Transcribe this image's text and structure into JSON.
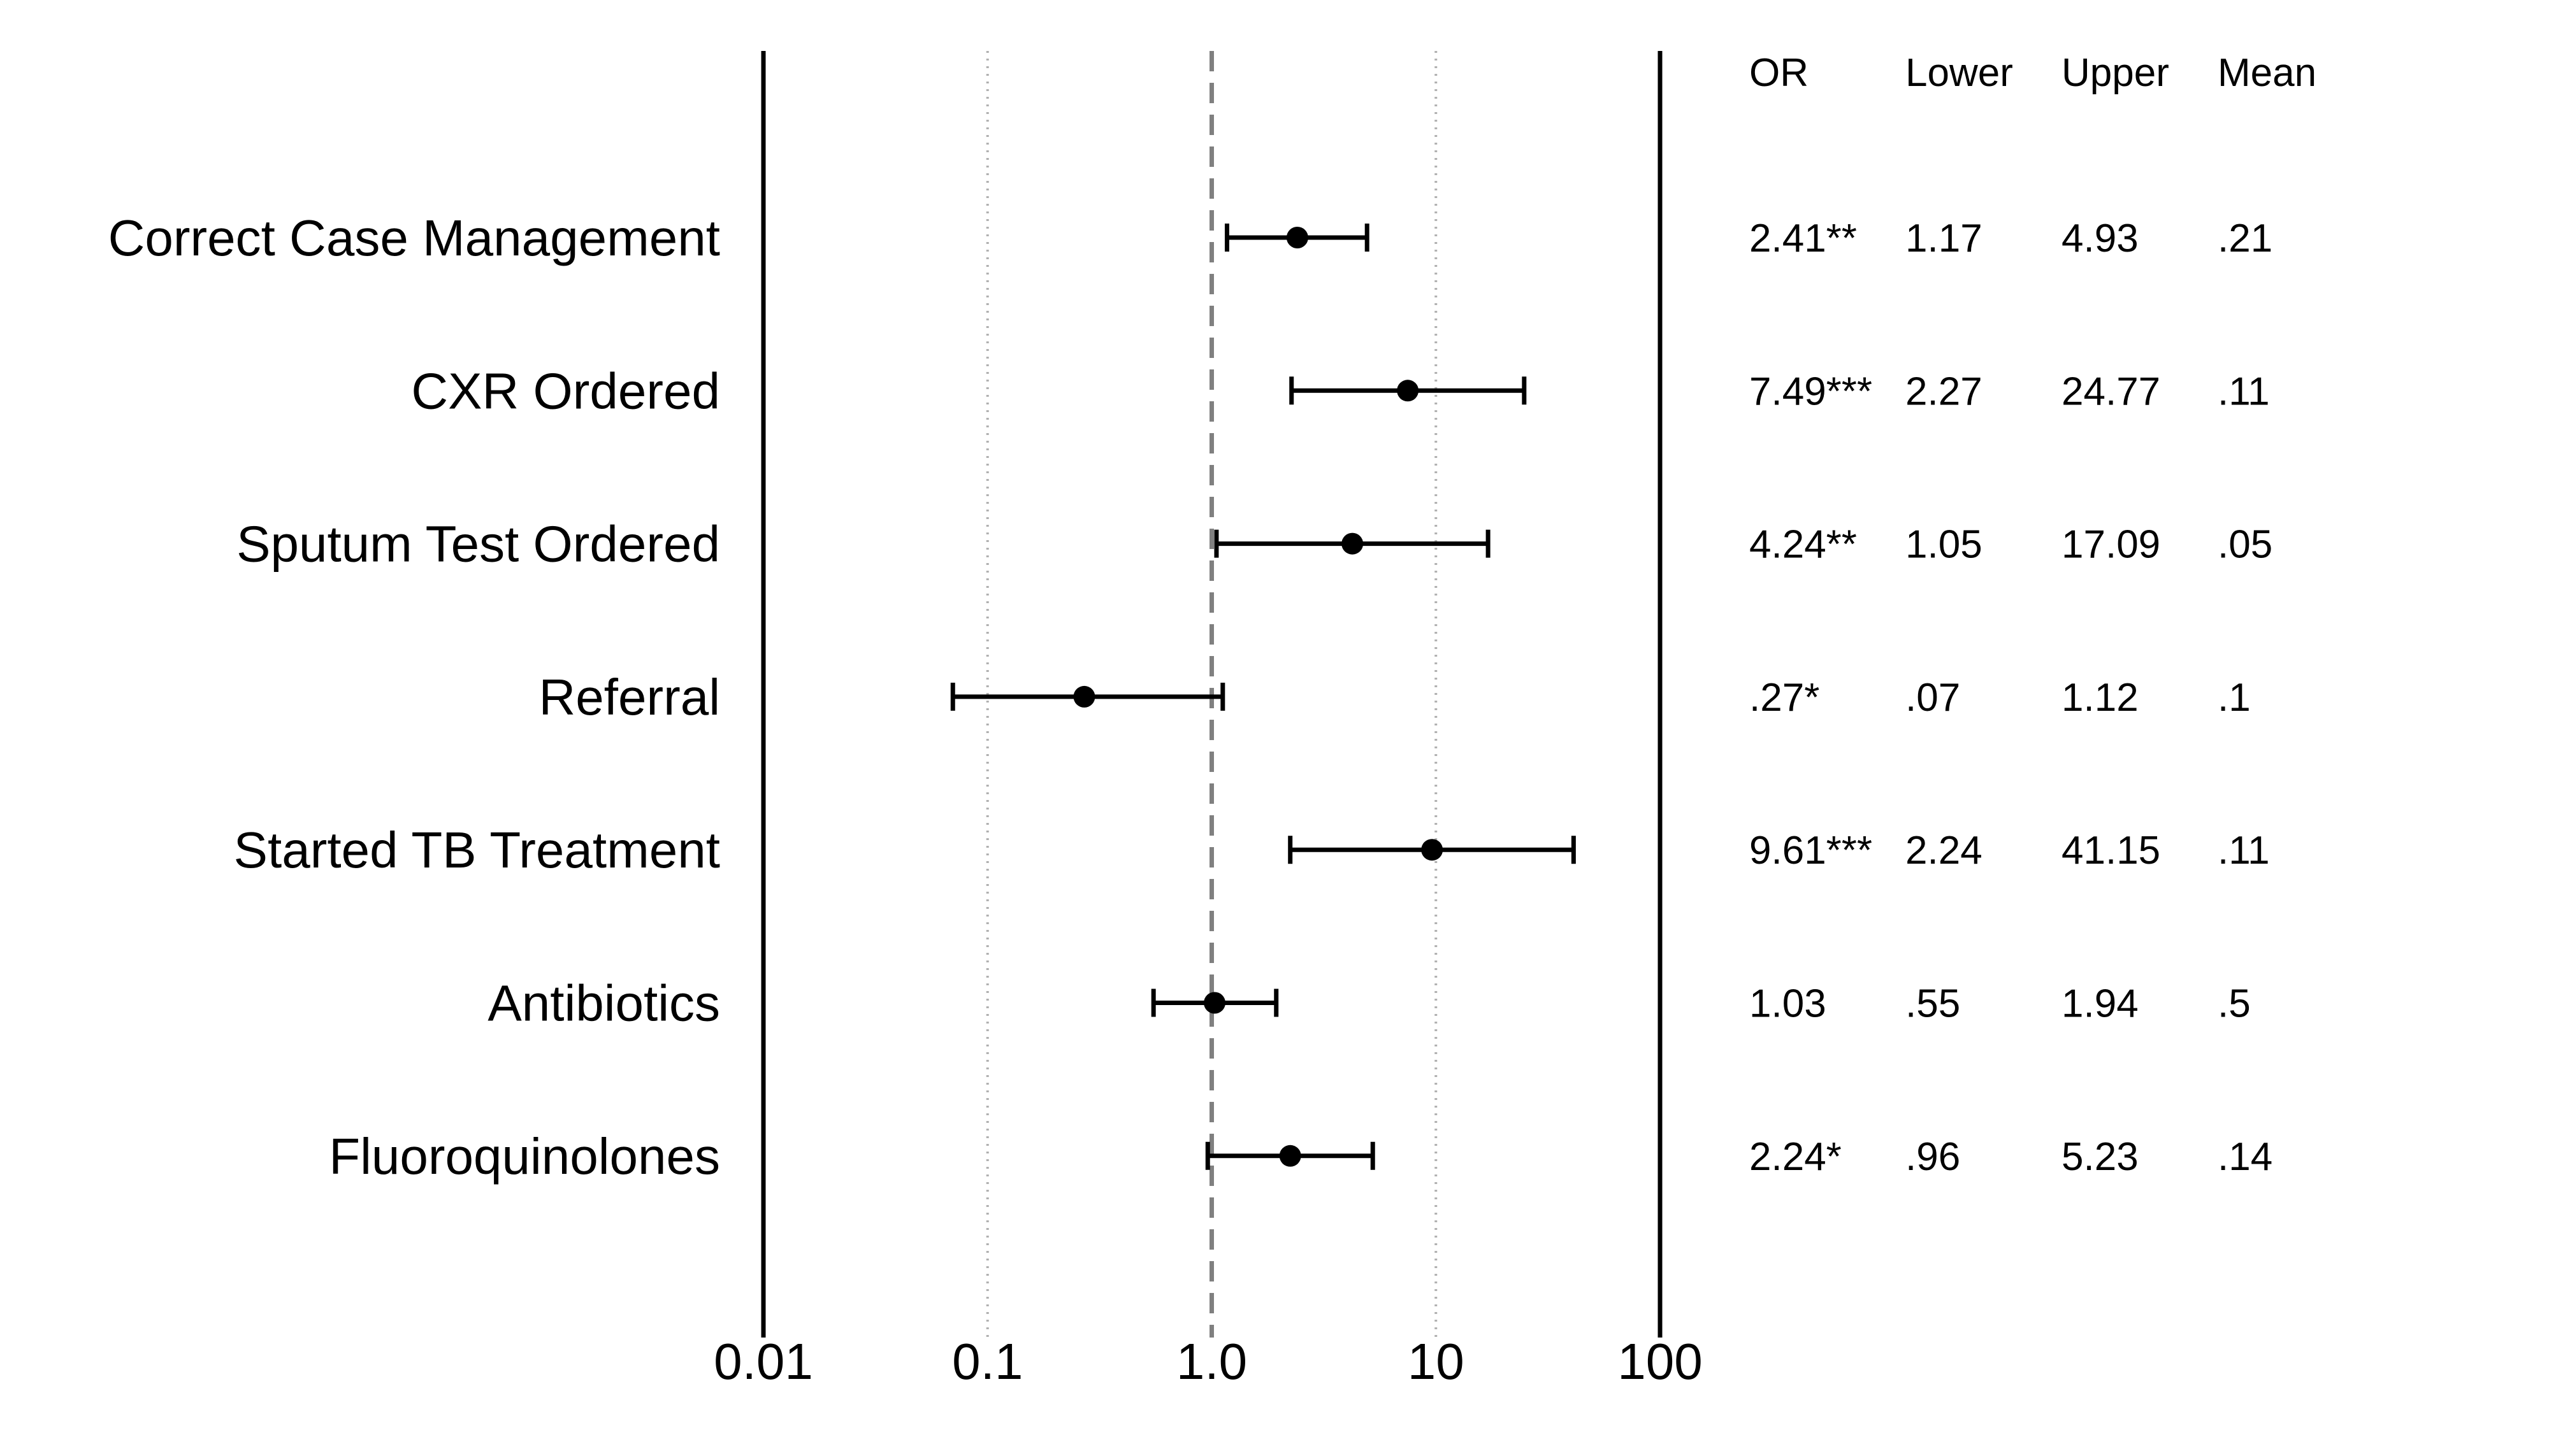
{
  "chart_data": {
    "type": "forest",
    "x_scale": "log",
    "xlim": [
      0.01,
      100
    ],
    "x_ticks": [
      {
        "value": 0.01,
        "label": "0.01"
      },
      {
        "value": 0.1,
        "label": "0.1"
      },
      {
        "value": 1,
        "label": "1.0"
      },
      {
        "value": 10,
        "label": "10"
      },
      {
        "value": 100,
        "label": "100"
      }
    ],
    "dotted_gridlines_at": [
      0.1,
      10
    ],
    "reference_line_at": 1,
    "table_headers": {
      "or": "OR",
      "lower": "Lower",
      "upper": "Upper",
      "mean": "Mean"
    },
    "rows": [
      {
        "label": "Correct Case Management",
        "or": 2.41,
        "lower": 1.17,
        "upper": 4.93,
        "or_text": "2.41**",
        "lower_text": "1.17",
        "upper_text": "4.93",
        "mean_text": ".21"
      },
      {
        "label": "CXR Ordered",
        "or": 7.49,
        "lower": 2.27,
        "upper": 24.77,
        "or_text": "7.49***",
        "lower_text": "2.27",
        "upper_text": "24.77",
        "mean_text": ".11"
      },
      {
        "label": "Sputum Test Ordered",
        "or": 4.24,
        "lower": 1.05,
        "upper": 17.09,
        "or_text": "4.24**",
        "lower_text": "1.05",
        "upper_text": "17.09",
        "mean_text": ".05"
      },
      {
        "label": "Referral",
        "or": 0.27,
        "lower": 0.07,
        "upper": 1.12,
        "or_text": ".27*",
        "lower_text": ".07",
        "upper_text": "1.12",
        "mean_text": ".1"
      },
      {
        "label": "Started TB Treatment",
        "or": 9.61,
        "lower": 2.24,
        "upper": 41.15,
        "or_text": "9.61***",
        "lower_text": "2.24",
        "upper_text": "41.15",
        "mean_text": ".11"
      },
      {
        "label": "Antibiotics",
        "or": 1.03,
        "lower": 0.55,
        "upper": 1.94,
        "or_text": "1.03",
        "lower_text": ".55",
        "upper_text": "1.94",
        "mean_text": ".5"
      },
      {
        "label": "Fluoroquinolones",
        "or": 2.24,
        "lower": 0.96,
        "upper": 5.23,
        "or_text": "2.24*",
        "lower_text": ".96",
        "upper_text": "5.23",
        "mean_text": ".14"
      }
    ],
    "colors": {
      "marks": "#000000",
      "reference_line": "#808080",
      "gridlines": "#b0b0b0"
    }
  }
}
